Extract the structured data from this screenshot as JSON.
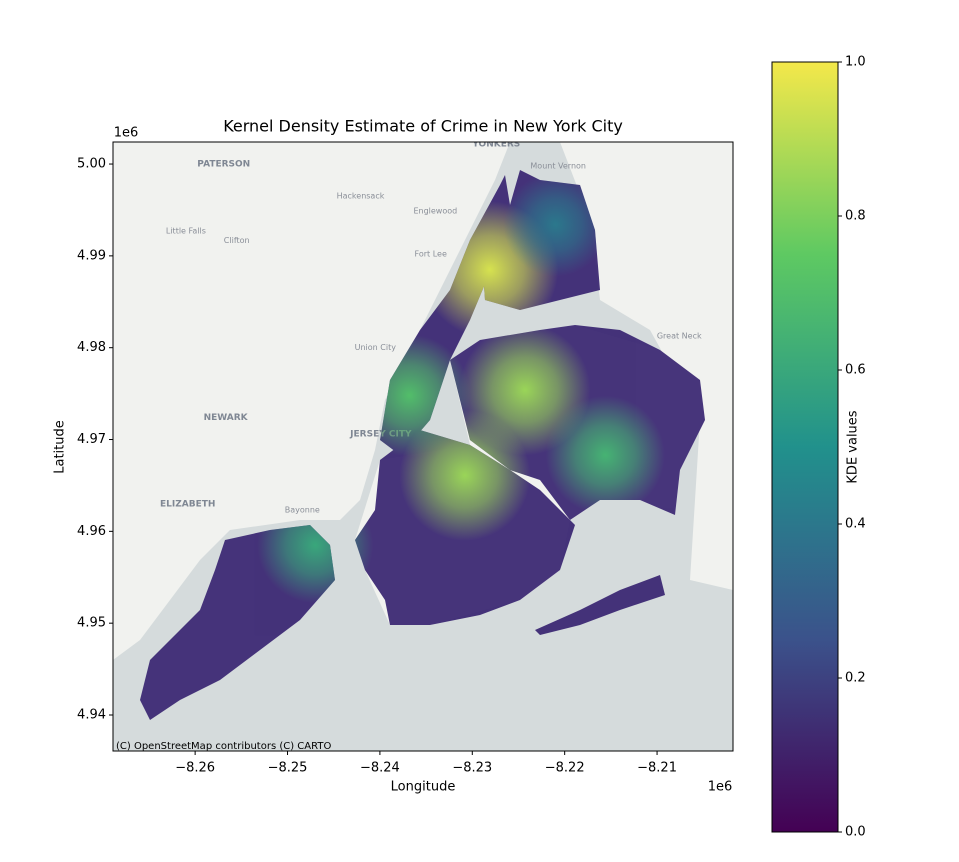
{
  "chart_data": {
    "type": "kde_map",
    "title": "Kernel Density Estimate of Crime in New York City",
    "x_label": "Longitude",
    "y_label": "Latitude",
    "x_offset": "1e6",
    "y_offset": "1e6",
    "attribution": "(C) OpenStreetMap contributors (C) CARTO",
    "xlim": [
      -8.26889,
      -8.20178
    ],
    "ylim": [
      4.93608,
      5.0024
    ],
    "xticks": [
      {
        "value": -8.26,
        "label": "−8.26"
      },
      {
        "value": -8.25,
        "label": "−8.25"
      },
      {
        "value": -8.24,
        "label": "−8.24"
      },
      {
        "value": -8.23,
        "label": "−8.23"
      },
      {
        "value": -8.22,
        "label": "−8.22"
      },
      {
        "value": -8.21,
        "label": "−8.21"
      }
    ],
    "yticks": [
      4.94,
      4.95,
      4.96,
      4.97,
      4.98,
      4.99,
      {
        "value": 5.0,
        "label": "5.00"
      }
    ],
    "colormap": "viridis",
    "colormap_colors": [
      "#440154",
      "#3b528b",
      "#21918c",
      "#5ec962",
      "#f4e84a"
    ],
    "colorbar_label": "KDE values",
    "clim": [
      0,
      1
    ],
    "cticks": [
      {
        "value": 0,
        "label": "0.0"
      },
      0.2,
      0.4,
      0.6,
      0.8,
      {
        "value": 1,
        "label": "1.0"
      }
    ],
    "hotspots": {
      "x": [
        -8.2281,
        -8.2243,
        -8.2308,
        -8.2368,
        -8.2156,
        -8.247,
        -8.221
      ],
      "y": [
        4.9885,
        4.9754,
        4.9661,
        4.9748,
        4.9683,
        4.9585,
        4.9934
      ],
      "values": [
        0.95,
        0.85,
        0.85,
        0.7,
        0.65,
        0.6,
        0.4
      ]
    },
    "place_labels": [
      {
        "name": "PATERSON",
        "x": -8.2569,
        "y": 5.0
      },
      {
        "name": "NEWARK",
        "x": -8.2567,
        "y": 4.9724
      },
      {
        "name": "JERSEY CITY",
        "x": -8.2399,
        "y": 4.9706
      },
      {
        "name": "ELIZABETH",
        "x": -8.2608,
        "y": 4.963
      },
      {
        "name": "YONKERS",
        "x": -8.2274,
        "y": 5.0022
      },
      {
        "name": "Mount Vernon",
        "x": -8.2207,
        "y": 4.9998
      },
      {
        "name": "Hackensack",
        "x": -8.2421,
        "y": 4.9965
      },
      {
        "name": "Englewood",
        "x": -8.234,
        "y": 4.9949
      },
      {
        "name": "Fort Lee",
        "x": -8.2345,
        "y": 4.9902
      },
      {
        "name": "Clifton",
        "x": -8.2555,
        "y": 4.9917
      },
      {
        "name": "Union City",
        "x": -8.2405,
        "y": 4.98
      },
      {
        "name": "Bayonne",
        "x": -8.2484,
        "y": 4.9623
      },
      {
        "name": "Great Neck",
        "x": -8.2076,
        "y": 4.9813
      },
      {
        "name": "Little Falls",
        "x": -8.261,
        "y": 4.9927
      }
    ]
  }
}
